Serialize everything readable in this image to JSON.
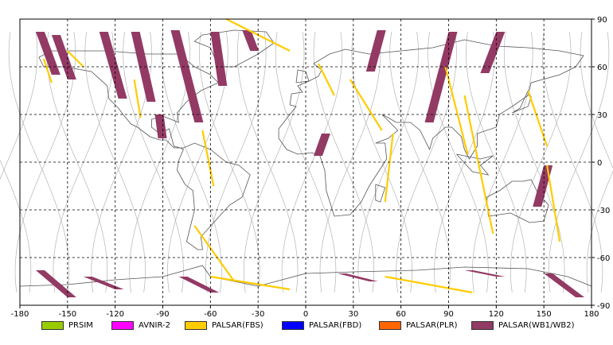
{
  "map": {
    "x_ticks": [
      -180,
      -150,
      -120,
      -90,
      -60,
      -30,
      0,
      30,
      60,
      90,
      120,
      150,
      180
    ],
    "y_ticks": [
      90,
      60,
      30,
      0,
      -30,
      -60,
      -90
    ],
    "x_range": [
      -180,
      180
    ],
    "y_range": [
      -90,
      90
    ],
    "grid": "dashed",
    "colors": {
      "wb": "#923a64",
      "fbs": "#ffcc00",
      "coast": "#555555",
      "orbit": "#b4b4b4",
      "grid": "#000000"
    }
  },
  "legend": [
    {
      "label": "PRSIM",
      "color": "#99cc00"
    },
    {
      "label": "AVNIR-2",
      "color": "#ff00ff"
    },
    {
      "label": "PALSAR(FBS)",
      "color": "#ffcc00"
    },
    {
      "label": "PALSAR(FBD)",
      "color": "#0000ff"
    },
    {
      "label": "PALSAR(PLR)",
      "color": "#ff6600"
    },
    {
      "label": "PALSAR(WB1/WB2)",
      "color": "#923a64"
    }
  ],
  "chart_data": {
    "type": "scatter",
    "xlabel": "",
    "ylabel": "",
    "xlim": [
      -180,
      180
    ],
    "ylim": [
      -90,
      90
    ],
    "series": [
      {
        "name": "PALSAR(WB1/WB2)",
        "swaths": [
          [
            [
              -170,
              82
            ],
            [
              -160,
              55
            ]
          ],
          [
            [
              -160,
              80
            ],
            [
              -150,
              52
            ]
          ],
          [
            [
              -130,
              82
            ],
            [
              -118,
              40
            ]
          ],
          [
            [
              -110,
              82
            ],
            [
              -100,
              38
            ]
          ],
          [
            [
              -85,
              83
            ],
            [
              -70,
              25
            ]
          ],
          [
            [
              -60,
              82
            ],
            [
              -55,
              48
            ]
          ],
          [
            [
              -40,
              83
            ],
            [
              -35,
              70
            ]
          ],
          [
            [
              45,
              83
            ],
            [
              38,
              57
            ]
          ],
          [
            [
              90,
              82
            ],
            [
              75,
              25
            ]
          ],
          [
            [
              120,
              82
            ],
            [
              110,
              56
            ]
          ],
          [
            [
              -95,
              30
            ],
            [
              -93,
              15
            ]
          ],
          [
            [
              10,
              18
            ],
            [
              5,
              4
            ]
          ],
          [
            [
              150,
              -2
            ],
            [
              143,
              -28
            ]
          ],
          [
            [
              -170,
              -68
            ],
            [
              -150,
              -85
            ]
          ],
          [
            [
              -140,
              -72
            ],
            [
              -120,
              -80
            ]
          ],
          [
            [
              -80,
              -72
            ],
            [
              -60,
              -82
            ]
          ],
          [
            [
              20,
              -70
            ],
            [
              40,
              -75
            ]
          ],
          [
            [
              100,
              -68
            ],
            [
              120,
              -72
            ]
          ],
          [
            [
              150,
              -70
            ],
            [
              170,
              -85
            ]
          ]
        ]
      },
      {
        "name": "PALSAR(FBS)",
        "swaths": [
          [
            [
              -165,
              65
            ],
            [
              -160,
              50
            ]
          ],
          [
            [
              -150,
              70
            ],
            [
              -140,
              60
            ]
          ],
          [
            [
              -108,
              52
            ],
            [
              -104,
              28
            ]
          ],
          [
            [
              -65,
              20
            ],
            [
              -58,
              -15
            ]
          ],
          [
            [
              -70,
              -40
            ],
            [
              -45,
              -75
            ]
          ],
          [
            [
              -50,
              90
            ],
            [
              -10,
              70
            ]
          ],
          [
            [
              8,
              62
            ],
            [
              18,
              42
            ]
          ],
          [
            [
              28,
              52
            ],
            [
              48,
              20
            ]
          ],
          [
            [
              55,
              18
            ],
            [
              50,
              -25
            ]
          ],
          [
            [
              88,
              60
            ],
            [
              102,
              5
            ]
          ],
          [
            [
              100,
              42
            ],
            [
              118,
              -45
            ]
          ],
          [
            [
              140,
              45
            ],
            [
              152,
              10
            ]
          ],
          [
            [
              152,
              -2
            ],
            [
              160,
              -50
            ]
          ],
          [
            [
              50,
              -72
            ],
            [
              105,
              -82
            ]
          ],
          [
            [
              -60,
              -72
            ],
            [
              -10,
              -80
            ]
          ]
        ]
      }
    ]
  }
}
